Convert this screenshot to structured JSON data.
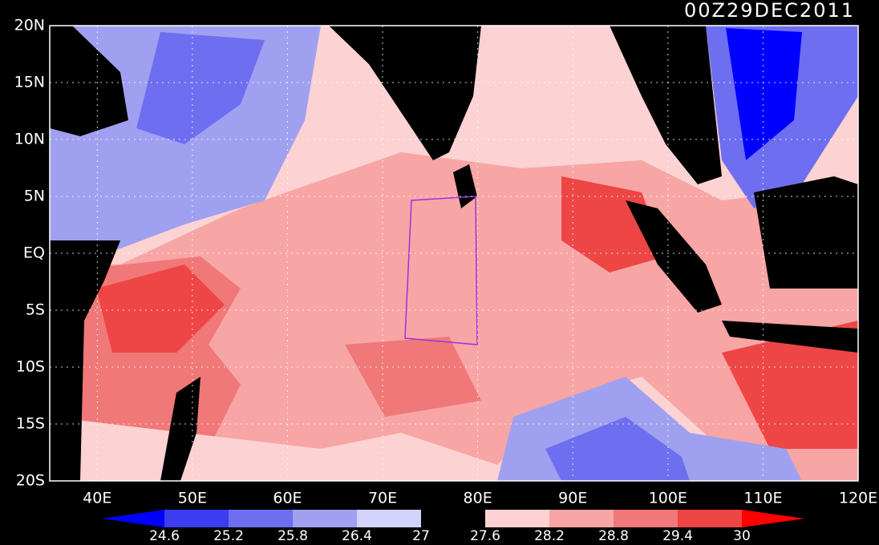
{
  "title": "00Z29DEC2011",
  "lat_labels": [
    "20N",
    "15N",
    "10N",
    "5N",
    "EQ",
    "5S",
    "10S",
    "15S",
    "20S"
  ],
  "lon_labels": [
    "40E",
    "50E",
    "60E",
    "70E",
    "80E",
    "90E",
    "100E",
    "110E",
    "120E"
  ],
  "colorbar": {
    "levels": [
      24.6,
      25.2,
      25.8,
      26.4,
      27,
      27.6,
      28.2,
      28.8,
      29.4,
      30
    ],
    "colors": [
      "#0000ff",
      "#3c3cf0",
      "#6e6ef0",
      "#a0a0f0",
      "#d2d2fa",
      "#000000",
      "#fcd2d2",
      "#f8a5a5",
      "#f07878",
      "#ee4545",
      "#ff0000"
    ]
  }
}
